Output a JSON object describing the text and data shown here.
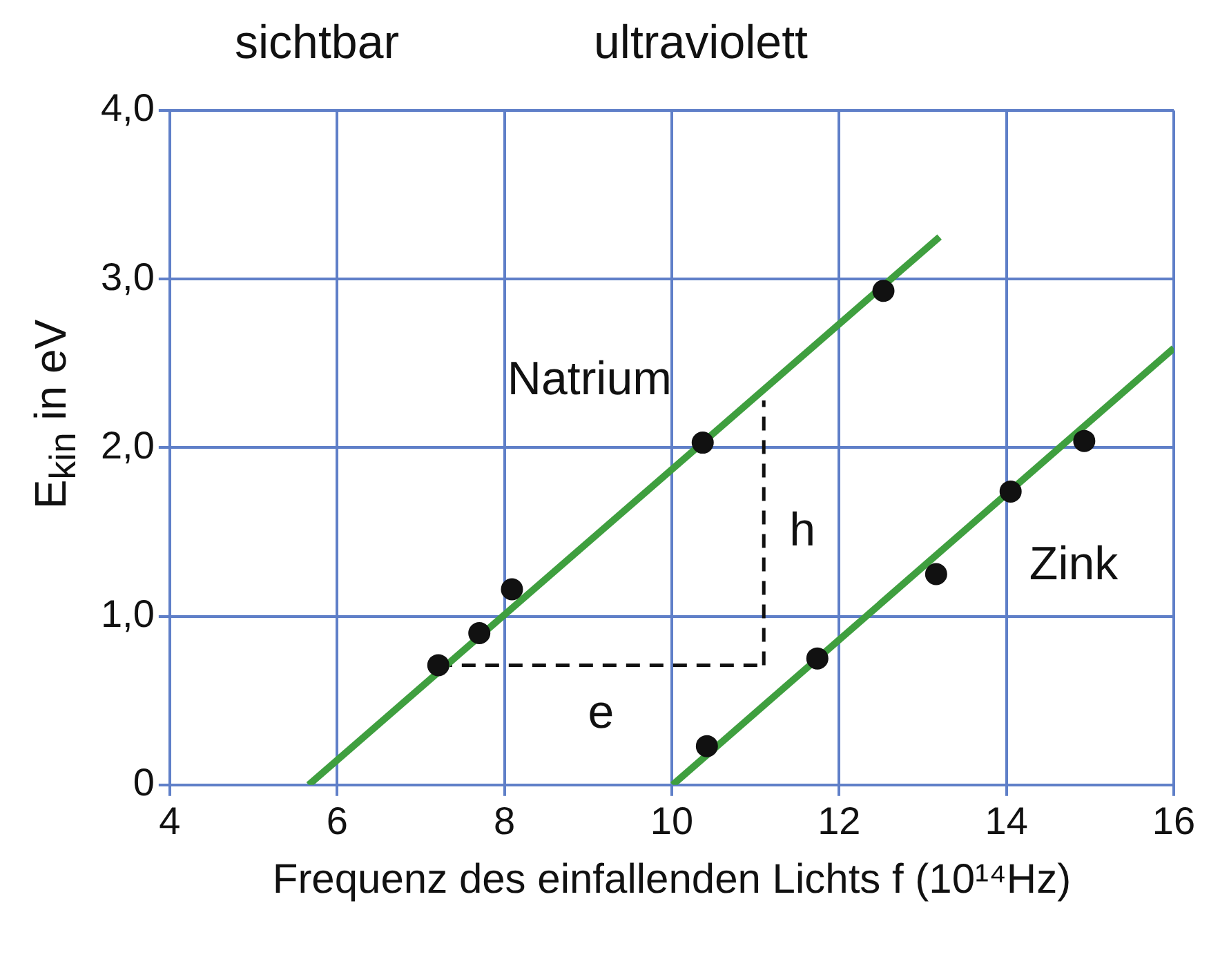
{
  "chart_data": {
    "type": "scatter",
    "xlabel": "Frequenz des einfallenden Lichts f (10¹⁴Hz)",
    "ylabel": "E$_{kin}$ in eV",
    "xlim": [
      4,
      16
    ],
    "xticks": [
      4,
      6,
      8,
      10,
      12,
      14,
      16
    ],
    "ylim": [
      0,
      4
    ],
    "yticks": [
      0,
      {
        "value": 1,
        "label": "1,0"
      },
      {
        "value": 2,
        "label": "2,0"
      },
      {
        "value": 3,
        "label": "3,0"
      },
      {
        "value": 4,
        "label": "4,0"
      }
    ],
    "grid": true,
    "legend": false,
    "series": [
      {
        "type": "line",
        "name": "Natrium",
        "color": "#3f9f3f",
        "marker": "none",
        "line_style": "solid",
        "x": [
          5.66,
          13.2
        ],
        "values": [
          0,
          3.25
        ]
      },
      {
        "type": "line",
        "name": "Zink",
        "color": "#3f9f3f",
        "marker": "none",
        "line_style": "solid",
        "x": [
          10.01,
          16
        ],
        "values": [
          0,
          2.59
        ]
      },
      {
        "type": "line",
        "name": "e",
        "color": "#111111",
        "marker": "none",
        "line_style": "dashed",
        "x": [
          7.21,
          11.1
        ],
        "values": [
          0.71,
          0.71
        ]
      },
      {
        "type": "line",
        "name": "h",
        "color": "#111111",
        "marker": "none",
        "line_style": "dashed",
        "x": [
          11.1,
          11.1
        ],
        "values": [
          0.71,
          2.28
        ]
      },
      {
        "color": "#111111",
        "marker": "circle",
        "x": [
          7.21,
          7.7,
          8.09,
          10.37,
          12.53
        ],
        "values": [
          0.71,
          0.9,
          1.16,
          2.03,
          2.93
        ]
      },
      {
        "color": "#111111",
        "marker": "circle",
        "x": [
          10.42,
          11.74,
          13.16,
          14.05,
          14.93
        ],
        "values": [
          0.23,
          0.75,
          1.25,
          1.74,
          2.04
        ]
      }
    ],
    "annotations": [
      "sichtbar",
      "ultraviolett"
    ]
  }
}
